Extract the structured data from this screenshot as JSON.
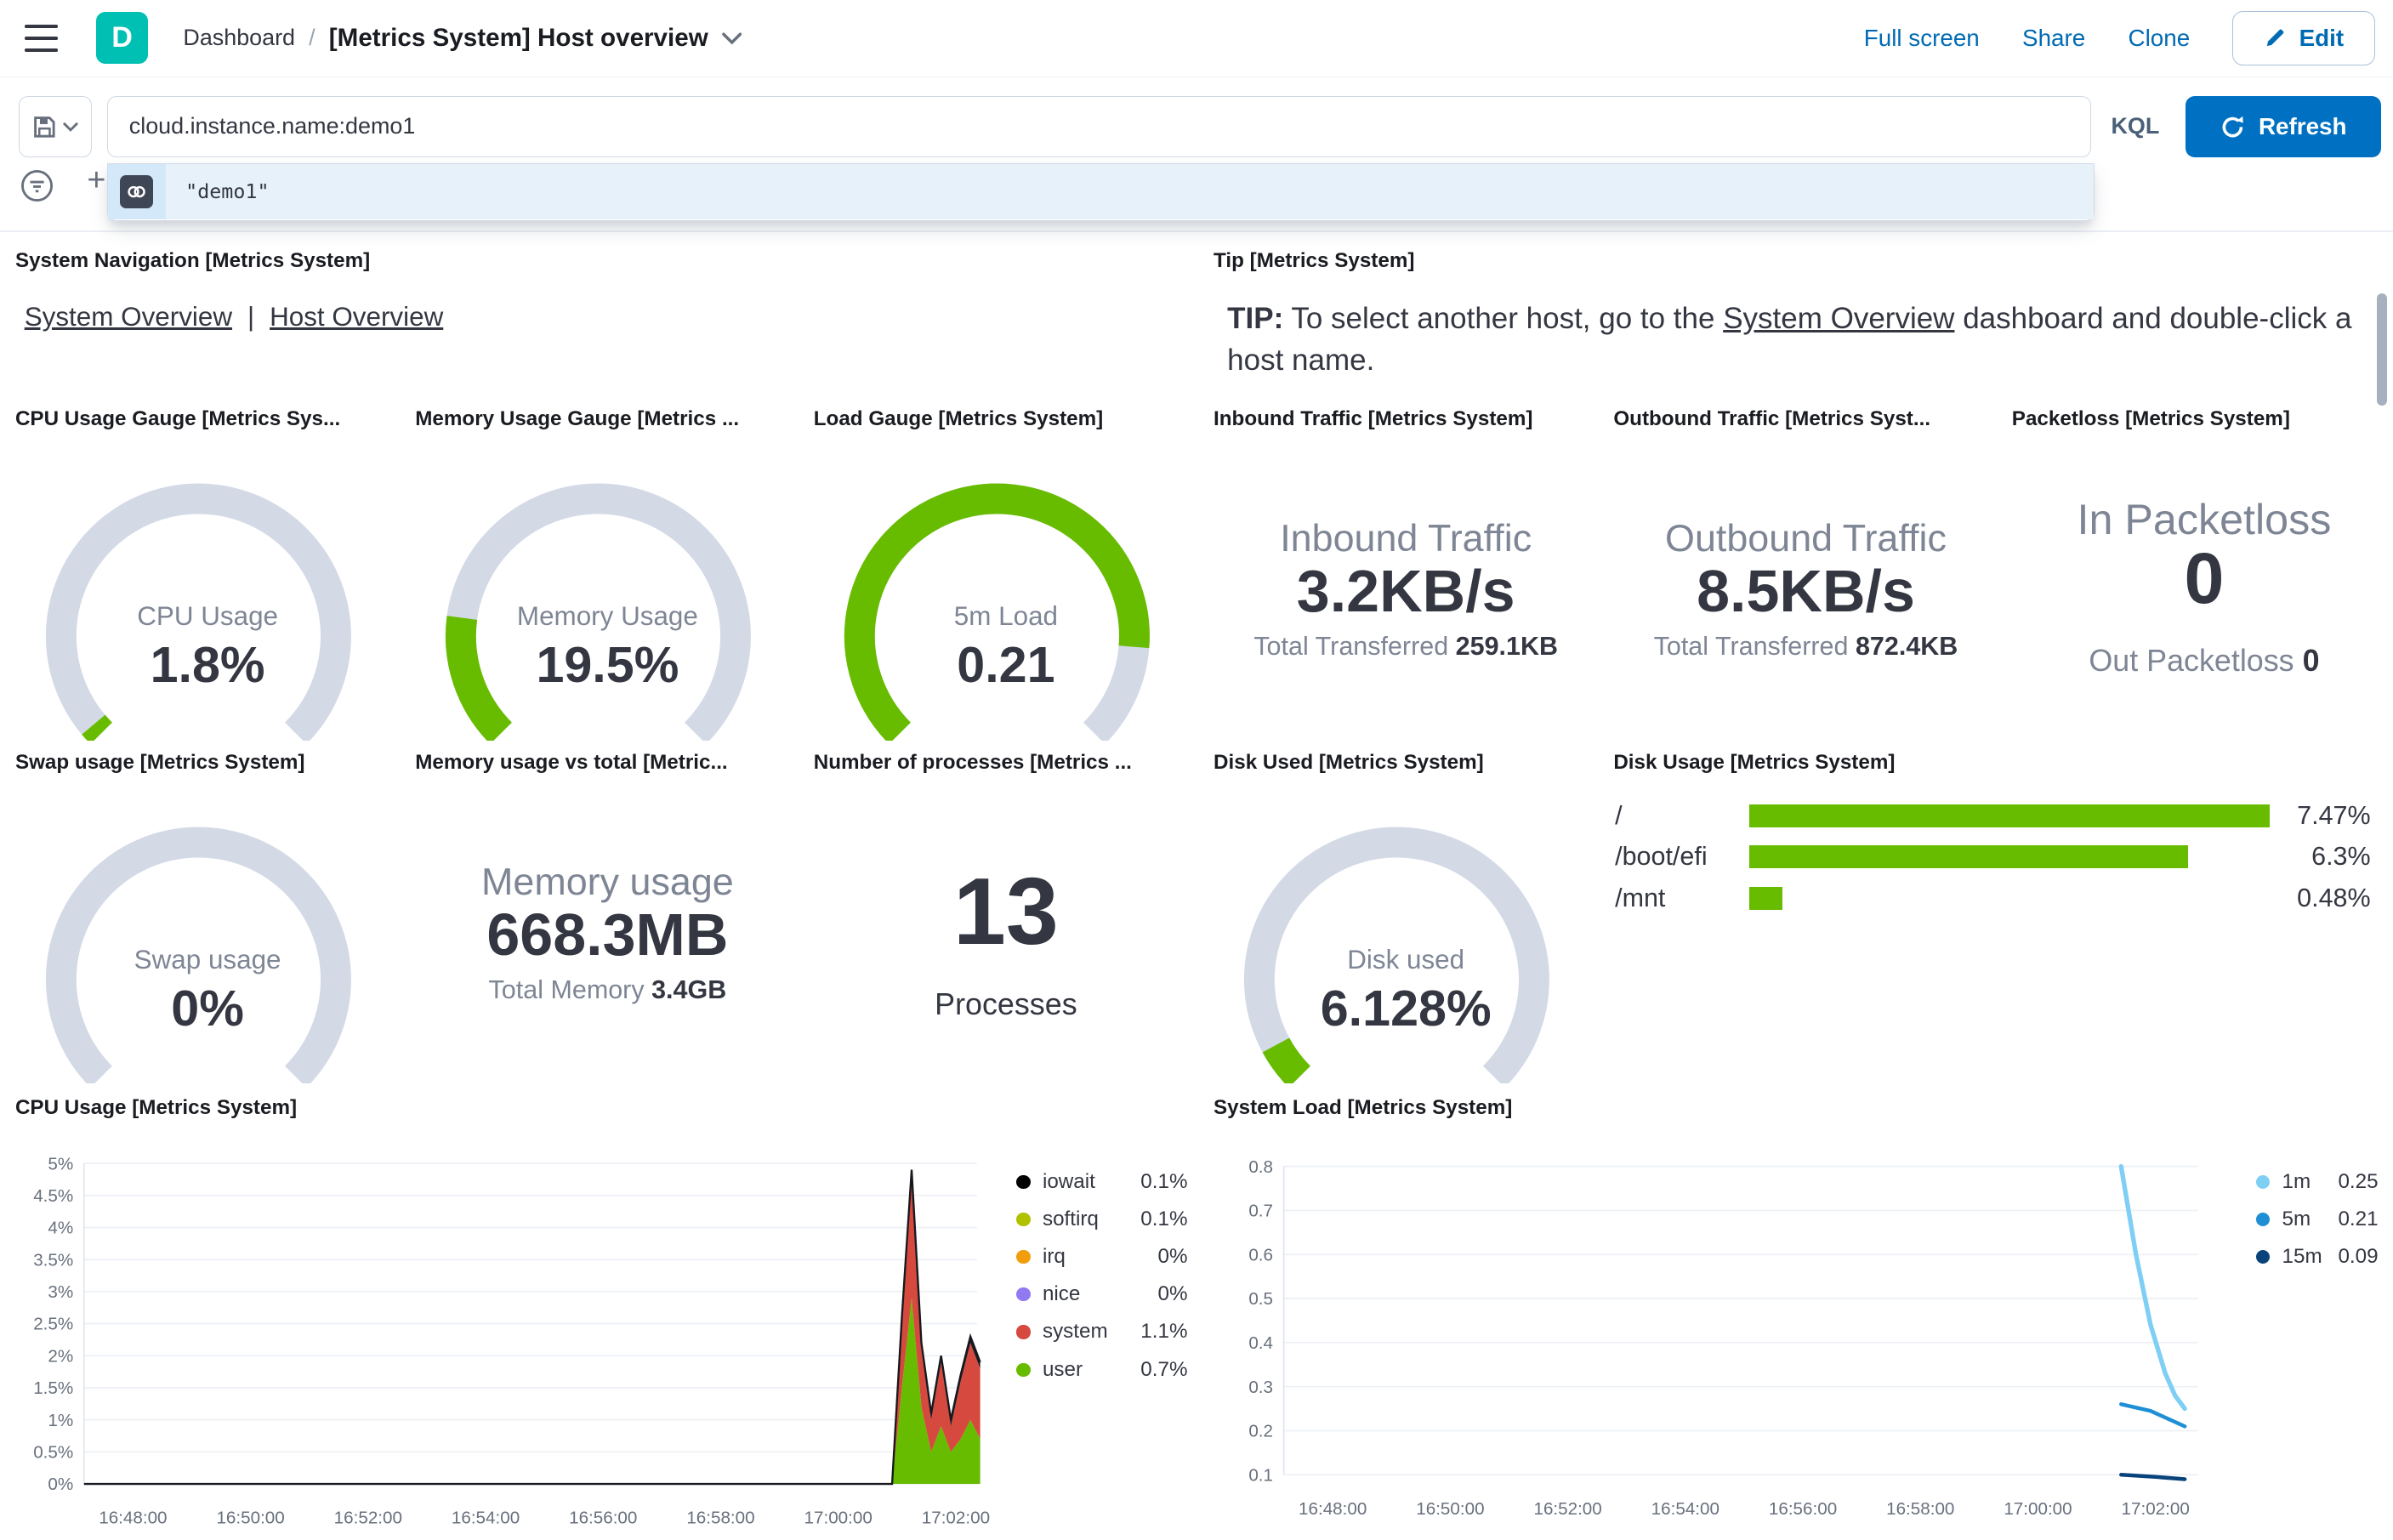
{
  "colors": {
    "accent_blue": "#006BB4",
    "button_blue": "#0071C2",
    "logo_teal": "#00BFB3",
    "gauge_green": "#68BC00",
    "gauge_track": "#D3DAE6",
    "text_dark": "#343741",
    "text_subdued": "#7E8594"
  },
  "header": {
    "logo_letter": "D",
    "breadcrumb_root": "Dashboard",
    "breadcrumb_separator": "/",
    "title": "[Metrics System] Host overview",
    "actions": [
      "Full screen",
      "Share",
      "Clone"
    ],
    "edit_label": "Edit"
  },
  "query_bar": {
    "query": "cloud.instance.name:demo1",
    "language_label": "KQL",
    "refresh_label": "Refresh",
    "add_filter_label": "+",
    "suggestion": "\"demo1\""
  },
  "panels": {
    "system_navigation": {
      "title": "System Navigation [Metrics System]",
      "links": [
        {
          "label": "System Overview"
        },
        {
          "label": "Host Overview"
        }
      ],
      "separator": "|"
    },
    "tip": {
      "title": "Tip [Metrics System]",
      "lead": "TIP:",
      "before_link": " To select another host, go to the ",
      "link": "System Overview",
      "after_link": " dashboard and double-click a host name."
    },
    "gauges": [
      {
        "title": "CPU Usage Gauge [Metrics Sys...",
        "label": "CPU Usage",
        "value": "1.8%",
        "fraction": 0.018
      },
      {
        "title": "Memory Usage Gauge [Metrics ...",
        "label": "Memory Usage",
        "value": "19.5%",
        "fraction": 0.195
      },
      {
        "title": "Load Gauge [Metrics System]",
        "label": "5m Load",
        "value": "0.21",
        "fraction": 0.85
      },
      {
        "title": "Swap usage [Metrics System]",
        "label": "Swap usage",
        "value": "0%",
        "fraction": 0
      },
      {
        "title": "Disk Used [Metrics System]",
        "label": "Disk used",
        "value": "6.128%",
        "fraction": 0.0613
      }
    ],
    "metrics": [
      {
        "title": "Inbound Traffic [Metrics System]",
        "label": "Inbound Traffic",
        "value": "3.2KB/s",
        "sub_label": "Total Transferred",
        "sub_value": "259.1KB"
      },
      {
        "title": "Outbound Traffic [Metrics Syst...",
        "label": "Outbound Traffic",
        "value": "8.5KB/s",
        "sub_label": "Total Transferred",
        "sub_value": "872.4KB"
      },
      {
        "title": "Packetloss [Metrics System]",
        "label": "In Packetloss",
        "value": "0",
        "sub_label": "Out Packetloss",
        "sub_value": "0"
      },
      {
        "title": "Memory usage vs total [Metric...",
        "label": "Memory usage",
        "value": "668.3MB",
        "sub_label": "Total Memory",
        "sub_value": "3.4GB"
      },
      {
        "title": "Number of processes [Metrics ...",
        "value": "13",
        "label": "Processes"
      }
    ],
    "disk_usage": {
      "title": "Disk Usage [Metrics System]",
      "max": 7.47,
      "bar_color": "#68BC00",
      "rows": [
        {
          "label": "/",
          "value": 7.47,
          "display": "7.47%"
        },
        {
          "label": "/boot/efi",
          "value": 6.3,
          "display": "6.3%"
        },
        {
          "label": "/mnt",
          "value": 0.48,
          "display": "0.48%"
        }
      ]
    }
  },
  "chart_data": [
    {
      "id": "cpu_usage",
      "type": "area",
      "stacked": true,
      "title": "CPU Usage [Metrics System]",
      "x_domain": [
        "16:47:10",
        "17:02:25"
      ],
      "x_ticks": [
        "16:48:00",
        "16:50:00",
        "16:52:00",
        "16:54:00",
        "16:56:00",
        "16:58:00",
        "17:00:00",
        "17:02:00"
      ],
      "y_ticks": [
        "5%",
        "4.5%",
        "4%",
        "3.5%",
        "3%",
        "2.5%",
        "2%",
        "1.5%",
        "1%",
        "0.5%",
        "0%"
      ],
      "ylim": [
        0,
        5
      ],
      "grid": true,
      "legend_position": "right",
      "series": [
        {
          "name": "user",
          "color": "#68BC00",
          "points": [
            [
              "16:47:10",
              0
            ],
            [
              "17:00:55",
              0
            ],
            [
              "17:01:05",
              1.5
            ],
            [
              "17:01:15",
              2.9
            ],
            [
              "17:01:25",
              1.2
            ],
            [
              "17:01:35",
              0.5
            ],
            [
              "17:01:45",
              0.9
            ],
            [
              "17:01:55",
              0.5
            ],
            [
              "17:02:05",
              0.7
            ],
            [
              "17:02:15",
              1.0
            ],
            [
              "17:02:25",
              0.7
            ]
          ]
        },
        {
          "name": "system",
          "color": "#D6493F",
          "points": [
            [
              "16:47:10",
              0
            ],
            [
              "17:00:55",
              0
            ],
            [
              "17:01:05",
              1.0
            ],
            [
              "17:01:15",
              1.9
            ],
            [
              "17:01:25",
              0.9
            ],
            [
              "17:01:35",
              0.5
            ],
            [
              "17:01:45",
              1.0
            ],
            [
              "17:01:55",
              0.4
            ],
            [
              "17:02:05",
              0.9
            ],
            [
              "17:02:15",
              1.2
            ],
            [
              "17:02:25",
              1.1
            ]
          ]
        },
        {
          "name": "iowait",
          "color": "#16191f",
          "points": [
            [
              "16:47:10",
              0
            ],
            [
              "17:00:55",
              0
            ],
            [
              "17:01:05",
              0.1
            ],
            [
              "17:01:15",
              0.1
            ],
            [
              "17:01:25",
              0.1
            ],
            [
              "17:01:35",
              0.1
            ],
            [
              "17:01:45",
              0.1
            ],
            [
              "17:01:55",
              0.1
            ],
            [
              "17:02:05",
              0.1
            ],
            [
              "17:02:15",
              0.1
            ],
            [
              "17:02:25",
              0.1
            ]
          ]
        }
      ],
      "legend": [
        {
          "name": "iowait",
          "value": "0.1%",
          "color": "#000000"
        },
        {
          "name": "softirq",
          "value": "0.1%",
          "color": "#B0C100"
        },
        {
          "name": "irq",
          "value": "0%",
          "color": "#F29D0B"
        },
        {
          "name": "nice",
          "value": "0%",
          "color": "#9179F2"
        },
        {
          "name": "system",
          "value": "1.1%",
          "color": "#D6493F"
        },
        {
          "name": "user",
          "value": "0.7%",
          "color": "#68BC00"
        }
      ]
    },
    {
      "id": "system_load",
      "type": "line",
      "stacked": false,
      "title": "System Load [Metrics System]",
      "x_domain": [
        "16:47:10",
        "17:02:30"
      ],
      "x_ticks": [
        "16:48:00",
        "16:50:00",
        "16:52:00",
        "16:54:00",
        "16:56:00",
        "16:58:00",
        "17:00:00",
        "17:02:00"
      ],
      "y_ticks": [
        "0.8",
        "0.7",
        "0.6",
        "0.5",
        "0.4",
        "0.3",
        "0.2",
        "0.1"
      ],
      "ylim": [
        0.1,
        0.8
      ],
      "grid": true,
      "legend_position": "right",
      "series": [
        {
          "name": "1m",
          "color": "#7FCFF5",
          "width": 3,
          "points": [
            [
              "17:01:25",
              0.8
            ],
            [
              "17:01:40",
              0.6
            ],
            [
              "17:01:55",
              0.44
            ],
            [
              "17:02:10",
              0.33
            ],
            [
              "17:02:20",
              0.28
            ],
            [
              "17:02:30",
              0.25
            ]
          ]
        },
        {
          "name": "5m",
          "color": "#1E8FD5",
          "width": 2.5,
          "points": [
            [
              "17:01:25",
              0.26
            ],
            [
              "17:01:55",
              0.245
            ],
            [
              "17:02:30",
              0.21
            ]
          ]
        },
        {
          "name": "15m",
          "color": "#0A437C",
          "width": 2.5,
          "points": [
            [
              "17:01:25",
              0.1
            ],
            [
              "17:02:00",
              0.095
            ],
            [
              "17:02:30",
              0.09
            ]
          ]
        }
      ],
      "legend": [
        {
          "name": "1m",
          "value": "0.25",
          "color": "#7FCFF5"
        },
        {
          "name": "5m",
          "value": "0.21",
          "color": "#1E8FD5"
        },
        {
          "name": "15m",
          "value": "0.09",
          "color": "#0A437C"
        }
      ]
    }
  ]
}
